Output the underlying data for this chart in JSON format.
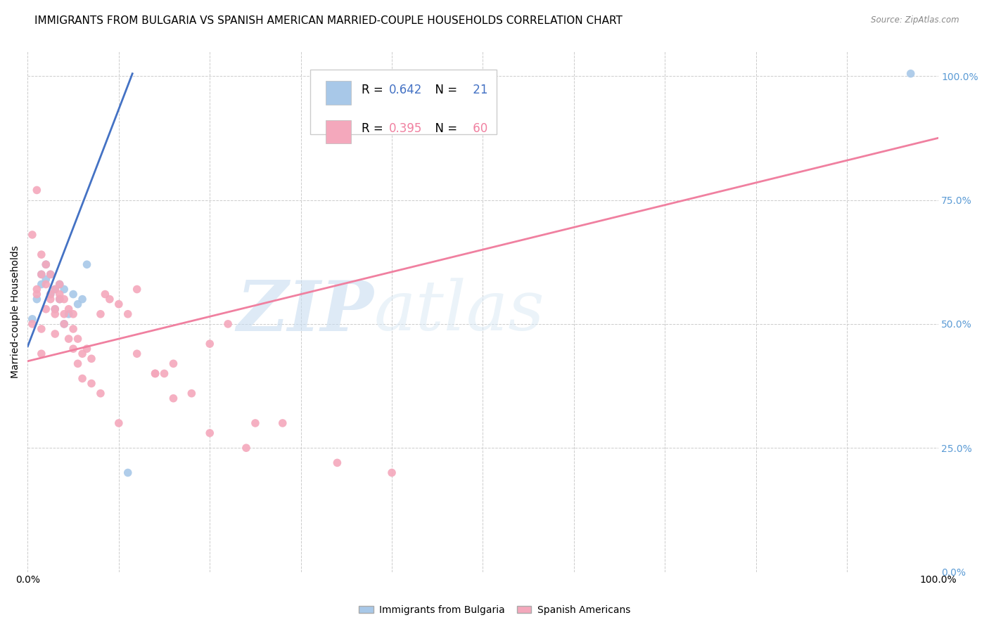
{
  "title": "IMMIGRANTS FROM BULGARIA VS SPANISH AMERICAN MARRIED-COUPLE HOUSEHOLDS CORRELATION CHART",
  "source": "Source: ZipAtlas.com",
  "ylabel": "Married-couple Households",
  "legend_blue_label": "Immigrants from Bulgaria",
  "legend_pink_label": "Spanish Americans",
  "r_blue": 0.642,
  "n_blue": 21,
  "r_pink": 0.395,
  "n_pink": 60,
  "blue_color": "#a8c8e8",
  "pink_color": "#f4a8bc",
  "blue_line_color": "#4472c4",
  "pink_line_color": "#f080a0",
  "watermark_zip": "ZIP",
  "watermark_atlas": "atlas",
  "xmin": 0.0,
  "xmax": 1.0,
  "ymin": 0.0,
  "ymax": 1.05,
  "yticks": [
    0.0,
    0.25,
    0.5,
    0.75,
    1.0
  ],
  "ytick_labels": [
    "",
    "",
    "",
    "",
    ""
  ],
  "right_ytick_labels": [
    "0.0%",
    "25.0%",
    "50.0%",
    "75.0%",
    "100.0%"
  ],
  "xtick_labels": [
    "0.0%",
    "",
    "",
    "",
    "",
    "",
    "",
    "",
    "",
    "",
    "100.0%"
  ],
  "background_color": "#ffffff",
  "grid_color": "#cccccc",
  "title_fontsize": 11,
  "axis_label_fontsize": 10,
  "tick_label_fontsize": 10,
  "right_tick_color": "#5b9bd5",
  "blue_scatter_x": [
    0.005,
    0.01,
    0.015,
    0.015,
    0.02,
    0.02,
    0.025,
    0.025,
    0.03,
    0.03,
    0.035,
    0.035,
    0.04,
    0.04,
    0.045,
    0.05,
    0.055,
    0.06,
    0.065,
    0.11,
    0.97
  ],
  "blue_scatter_y": [
    0.51,
    0.55,
    0.6,
    0.58,
    0.62,
    0.59,
    0.6,
    0.56,
    0.57,
    0.53,
    0.55,
    0.58,
    0.57,
    0.5,
    0.52,
    0.56,
    0.54,
    0.55,
    0.62,
    0.2,
    1.005
  ],
  "pink_scatter_x": [
    0.005,
    0.01,
    0.01,
    0.015,
    0.015,
    0.02,
    0.02,
    0.025,
    0.025,
    0.03,
    0.03,
    0.035,
    0.035,
    0.04,
    0.04,
    0.045,
    0.05,
    0.05,
    0.055,
    0.06,
    0.065,
    0.07,
    0.08,
    0.085,
    0.09,
    0.1,
    0.11,
    0.12,
    0.14,
    0.15,
    0.16,
    0.18,
    0.2,
    0.22,
    0.25,
    0.01,
    0.015,
    0.02,
    0.025,
    0.03,
    0.035,
    0.04,
    0.045,
    0.05,
    0.055,
    0.06,
    0.07,
    0.08,
    0.1,
    0.12,
    0.14,
    0.16,
    0.2,
    0.24,
    0.28,
    0.34,
    0.4,
    0.005,
    0.015,
    0.03
  ],
  "pink_scatter_y": [
    0.68,
    0.77,
    0.56,
    0.64,
    0.6,
    0.62,
    0.58,
    0.6,
    0.56,
    0.57,
    0.52,
    0.55,
    0.58,
    0.55,
    0.5,
    0.53,
    0.52,
    0.49,
    0.47,
    0.44,
    0.45,
    0.43,
    0.52,
    0.56,
    0.55,
    0.54,
    0.52,
    0.57,
    0.4,
    0.4,
    0.42,
    0.36,
    0.46,
    0.5,
    0.3,
    0.57,
    0.49,
    0.53,
    0.55,
    0.53,
    0.56,
    0.52,
    0.47,
    0.45,
    0.42,
    0.39,
    0.38,
    0.36,
    0.3,
    0.44,
    0.4,
    0.35,
    0.28,
    0.25,
    0.3,
    0.22,
    0.2,
    0.5,
    0.44,
    0.48
  ],
  "blue_line_x": [
    0.0,
    0.115
  ],
  "blue_line_y": [
    0.455,
    1.005
  ],
  "pink_line_x": [
    0.0,
    1.0
  ],
  "pink_line_y": [
    0.425,
    0.875
  ]
}
